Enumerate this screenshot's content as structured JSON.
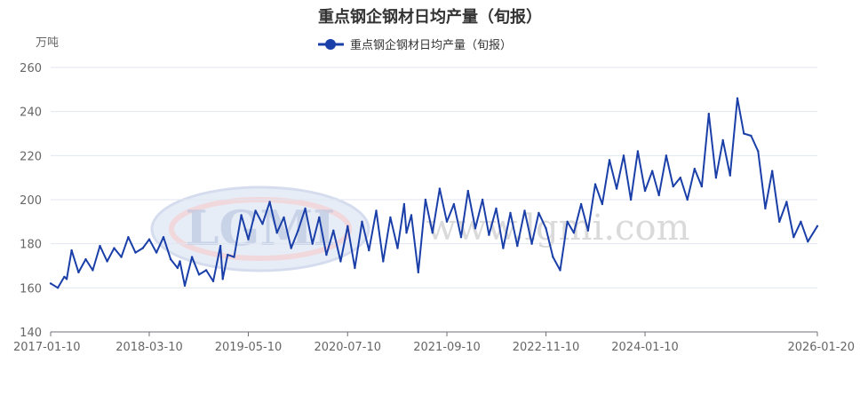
{
  "chart_data": {
    "type": "line",
    "title": "重点钢企钢材日均产量（旬报）",
    "ylabel": "万吨",
    "ylim": [
      140,
      260
    ],
    "yticks": [
      140,
      160,
      180,
      200,
      220,
      240,
      260
    ],
    "x_tick_labels": [
      "2017-01-10",
      "2018-03-10",
      "2019-05-10",
      "2020-07-10",
      "2021-09-10",
      "2022-11-10",
      "2024-01-10",
      "2026-01-20"
    ],
    "x_range": [
      "2017-01-10",
      "2026-01-20"
    ],
    "grid": "horizontal",
    "legend_position": "top-center",
    "series": [
      {
        "name": "重点钢企钢材日均产量（旬报）",
        "color": "#1a3fa8",
        "points": [
          [
            "2017-01-10",
            162
          ],
          [
            "2017-02-10",
            160
          ],
          [
            "2017-03-10",
            165
          ],
          [
            "2017-03-20",
            164
          ],
          [
            "2017-04-10",
            177
          ],
          [
            "2017-05-10",
            167
          ],
          [
            "2017-06-10",
            173
          ],
          [
            "2017-07-10",
            168
          ],
          [
            "2017-08-10",
            179
          ],
          [
            "2017-09-10",
            172
          ],
          [
            "2017-10-10",
            178
          ],
          [
            "2017-11-10",
            174
          ],
          [
            "2017-12-10",
            183
          ],
          [
            "2018-01-10",
            176
          ],
          [
            "2018-02-10",
            178
          ],
          [
            "2018-03-10",
            182
          ],
          [
            "2018-04-10",
            176
          ],
          [
            "2018-05-10",
            183
          ],
          [
            "2018-06-10",
            173
          ],
          [
            "2018-07-10",
            169
          ],
          [
            "2018-07-20",
            172
          ],
          [
            "2018-08-10",
            161
          ],
          [
            "2018-09-10",
            174
          ],
          [
            "2018-10-10",
            166
          ],
          [
            "2018-11-10",
            168
          ],
          [
            "2018-12-10",
            163
          ],
          [
            "2019-01-10",
            179
          ],
          [
            "2019-01-20",
            164
          ],
          [
            "2019-02-10",
            175
          ],
          [
            "2019-03-10",
            174
          ],
          [
            "2019-04-10",
            193
          ],
          [
            "2019-05-10",
            182
          ],
          [
            "2019-06-10",
            195
          ],
          [
            "2019-07-10",
            189
          ],
          [
            "2019-08-10",
            199
          ],
          [
            "2019-09-10",
            185
          ],
          [
            "2019-10-10",
            192
          ],
          [
            "2019-11-10",
            178
          ],
          [
            "2019-12-10",
            186
          ],
          [
            "2020-01-10",
            196
          ],
          [
            "2020-02-10",
            180
          ],
          [
            "2020-03-10",
            192
          ],
          [
            "2020-04-10",
            175
          ],
          [
            "2020-05-10",
            186
          ],
          [
            "2020-06-10",
            172
          ],
          [
            "2020-07-10",
            188
          ],
          [
            "2020-08-10",
            169
          ],
          [
            "2020-09-10",
            190
          ],
          [
            "2020-10-10",
            177
          ],
          [
            "2020-11-10",
            195
          ],
          [
            "2020-12-10",
            172
          ],
          [
            "2021-01-10",
            192
          ],
          [
            "2021-02-10",
            178
          ],
          [
            "2021-03-10",
            198
          ],
          [
            "2021-03-20",
            185
          ],
          [
            "2021-04-10",
            193
          ],
          [
            "2021-05-10",
            167
          ],
          [
            "2021-06-10",
            200
          ],
          [
            "2021-07-10",
            185
          ],
          [
            "2021-08-10",
            205
          ],
          [
            "2021-09-10",
            190
          ],
          [
            "2021-10-10",
            198
          ],
          [
            "2021-11-10",
            183
          ],
          [
            "2021-12-10",
            204
          ],
          [
            "2022-01-10",
            187
          ],
          [
            "2022-02-10",
            200
          ],
          [
            "2022-03-10",
            184
          ],
          [
            "2022-04-10",
            196
          ],
          [
            "2022-05-10",
            178
          ],
          [
            "2022-06-10",
            194
          ],
          [
            "2022-07-10",
            179
          ],
          [
            "2022-08-10",
            195
          ],
          [
            "2022-09-10",
            180
          ],
          [
            "2022-10-10",
            194
          ],
          [
            "2022-11-10",
            187
          ],
          [
            "2022-12-10",
            174
          ],
          [
            "2023-01-10",
            168
          ],
          [
            "2023-02-10",
            190
          ],
          [
            "2023-03-10",
            185
          ],
          [
            "2023-04-10",
            198
          ],
          [
            "2023-05-10",
            186
          ],
          [
            "2023-06-10",
            207
          ],
          [
            "2023-07-10",
            198
          ],
          [
            "2023-08-10",
            218
          ],
          [
            "2023-09-10",
            205
          ],
          [
            "2023-10-10",
            220
          ],
          [
            "2023-11-10",
            200
          ],
          [
            "2023-12-10",
            222
          ],
          [
            "2024-01-10",
            204
          ],
          [
            "2024-02-10",
            213
          ],
          [
            "2024-03-10",
            202
          ],
          [
            "2024-04-10",
            220
          ],
          [
            "2024-05-10",
            206
          ],
          [
            "2024-06-10",
            210
          ],
          [
            "2024-07-10",
            200
          ],
          [
            "2024-08-10",
            214
          ],
          [
            "2024-09-10",
            206
          ],
          [
            "2024-10-10",
            239
          ],
          [
            "2024-11-10",
            210
          ],
          [
            "2024-12-10",
            227
          ],
          [
            "2025-01-10",
            211
          ],
          [
            "2025-02-10",
            246
          ],
          [
            "2025-03-10",
            230
          ],
          [
            "2025-04-10",
            229
          ],
          [
            "2025-05-10",
            222
          ],
          [
            "2025-06-10",
            196
          ],
          [
            "2025-07-10",
            213
          ],
          [
            "2025-08-10",
            190
          ],
          [
            "2025-09-10",
            199
          ],
          [
            "2025-10-10",
            183
          ],
          [
            "2025-11-10",
            190
          ],
          [
            "2025-12-10",
            181
          ],
          [
            "2026-01-20",
            188
          ]
        ]
      }
    ]
  },
  "watermark": {
    "logo_text": "LGMI",
    "url_text": "www.lgmi.com"
  }
}
